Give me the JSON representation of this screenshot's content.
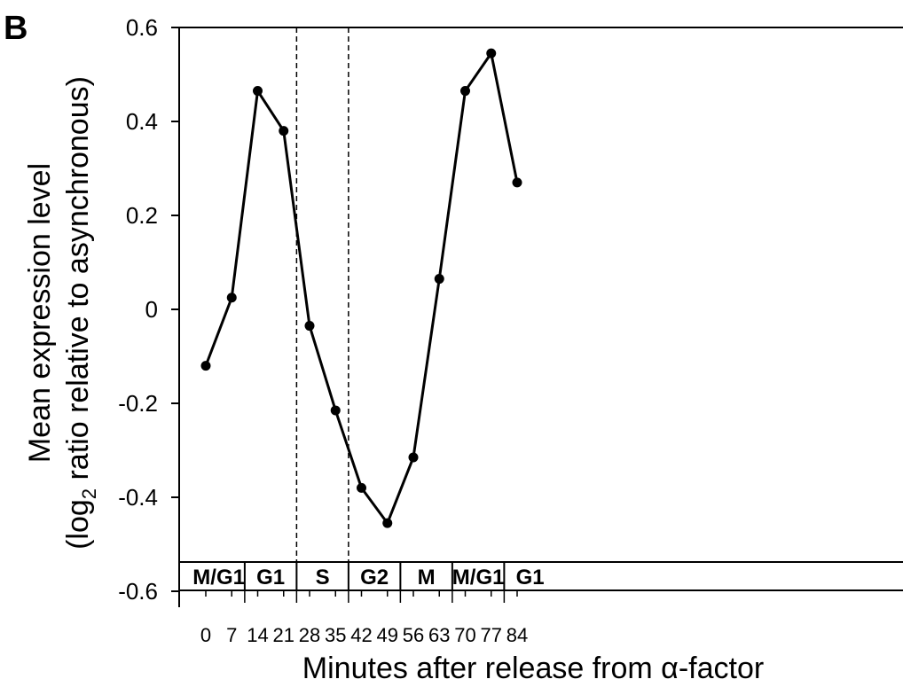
{
  "panel_label": "B",
  "chart_data": {
    "type": "line",
    "xlabel": "Minutes after release from α-factor",
    "ylabel_line1": "Mean expression level",
    "ylabel_line2_pre": "(log",
    "ylabel_line2_sub": "2",
    "ylabel_line2_post": " ratio relative to asynchronous)",
    "x": [
      0,
      7,
      14,
      21,
      28,
      35,
      42,
      49,
      56,
      63,
      70,
      77,
      84
    ],
    "x_tick_labels": [
      "0",
      "7",
      "14",
      "21",
      "28",
      "35",
      "42",
      "49",
      "56",
      "63",
      "70",
      "77",
      "84"
    ],
    "y_tick_labels": [
      "0.6",
      "0.4",
      "0.2",
      "0",
      "-0.2",
      "-0.4",
      "-0.6"
    ],
    "ylim": [
      -0.6,
      0.6
    ],
    "series": [
      {
        "values": [
          -0.12,
          0.025,
          0.465,
          0.38,
          -0.035,
          -0.215,
          -0.38,
          -0.455,
          -0.315,
          0.065,
          0.465,
          0.545,
          0.27
        ]
      }
    ],
    "boundary_lines_x": [
      24.5,
      38.5
    ],
    "phases": [
      {
        "label": "M/G1",
        "start": -3.5,
        "end": 10.5
      },
      {
        "label": "G1",
        "start": 10.5,
        "end": 24.5
      },
      {
        "label": "S",
        "start": 24.5,
        "end": 38.5
      },
      {
        "label": "G2",
        "start": 38.5,
        "end": 52.5
      },
      {
        "label": "M",
        "start": 52.5,
        "end": 66.5
      },
      {
        "label": "M/G1",
        "start": 66.5,
        "end": 80.5
      },
      {
        "label": "G1",
        "start": 80.5,
        "end": 94.5
      }
    ],
    "grid": false,
    "line_color": "#000000"
  }
}
